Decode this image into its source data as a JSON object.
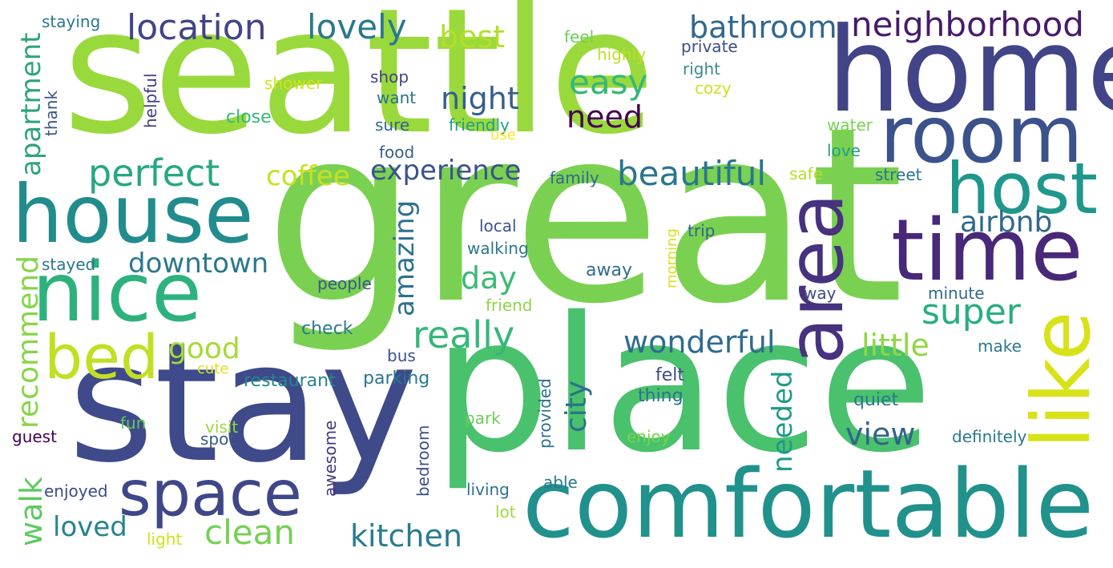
{
  "words": [
    {
      "id": "seattle",
      "text": "seattle",
      "color": "#9ad93c"
    },
    {
      "id": "great",
      "text": "great",
      "color": "#7ad151"
    },
    {
      "id": "place",
      "text": "place",
      "color": "#4ac16d"
    },
    {
      "id": "stay",
      "text": "stay",
      "color": "#3e4a89"
    },
    {
      "id": "home",
      "text": "home",
      "color": "#414487"
    },
    {
      "id": "comfortable",
      "text": "comfortable",
      "color": "#21918c"
    },
    {
      "id": "house",
      "text": "house",
      "color": "#228c8d"
    },
    {
      "id": "nice",
      "text": "nice",
      "color": "#2db27d"
    },
    {
      "id": "time",
      "text": "time",
      "color": "#482878"
    },
    {
      "id": "room",
      "text": "room",
      "color": "#3b528b"
    },
    {
      "id": "like",
      "text": "like",
      "color": "#d8e219"
    },
    {
      "id": "host",
      "text": "host",
      "color": "#1f988b"
    },
    {
      "id": "area",
      "text": "area",
      "color": "#46327e"
    },
    {
      "id": "space",
      "text": "space",
      "color": "#3f4788"
    },
    {
      "id": "bed",
      "text": "bed",
      "color": "#c2df23"
    },
    {
      "id": "location",
      "text": "location",
      "color": "#414487"
    },
    {
      "id": "lovely",
      "text": "lovely",
      "color": "#2a788e"
    },
    {
      "id": "neighborhood",
      "text": "neighborhood",
      "color": "#481a6c"
    },
    {
      "id": "bathroom",
      "text": "bathroom",
      "color": "#31688e"
    },
    {
      "id": "best",
      "text": "best",
      "color": "#b5de2b"
    },
    {
      "id": "easy",
      "text": "easy",
      "color": "#35b779"
    },
    {
      "id": "night",
      "text": "night",
      "color": "#355f8d"
    },
    {
      "id": "need",
      "text": "need",
      "color": "#440154"
    },
    {
      "id": "perfect",
      "text": "perfect",
      "color": "#26a784"
    },
    {
      "id": "coffee",
      "text": "coffee",
      "color": "#c9e020"
    },
    {
      "id": "experience",
      "text": "experience",
      "color": "#3b528b"
    },
    {
      "id": "beautiful",
      "text": "beautiful",
      "color": "#2a768e"
    },
    {
      "id": "airbnb",
      "text": "airbnb",
      "color": "#31688e"
    },
    {
      "id": "apartment",
      "text": "apartment",
      "color": "#2ea37f"
    },
    {
      "id": "downtown",
      "text": "downtown",
      "color": "#2a788e"
    },
    {
      "id": "super",
      "text": "super",
      "color": "#27ad81"
    },
    {
      "id": "really",
      "text": "really",
      "color": "#35b779"
    },
    {
      "id": "day",
      "text": "day",
      "color": "#3aba76"
    },
    {
      "id": "amazing",
      "text": "amazing",
      "color": "#2c728e"
    },
    {
      "id": "wonderful",
      "text": "wonderful",
      "color": "#2f6c8e"
    },
    {
      "id": "little",
      "text": "little",
      "color": "#90d743"
    },
    {
      "id": "good",
      "text": "good",
      "color": "#a5db36"
    },
    {
      "id": "recommend",
      "text": "recommend",
      "color": "#86d549"
    },
    {
      "id": "city",
      "text": "city",
      "color": "#2c728e"
    },
    {
      "id": "needed",
      "text": "needed",
      "color": "#1f988b"
    },
    {
      "id": "view",
      "text": "view",
      "color": "#33638d"
    },
    {
      "id": "walk",
      "text": "walk",
      "color": "#5ec962"
    },
    {
      "id": "loved",
      "text": "loved",
      "color": "#25848e"
    },
    {
      "id": "clean",
      "text": "clean",
      "color": "#75d054"
    },
    {
      "id": "kitchen",
      "text": "kitchen",
      "color": "#287c8e"
    },
    {
      "id": "staying",
      "text": "staying",
      "color": "#2a788e"
    },
    {
      "id": "feel",
      "text": "feel",
      "color": "#6ece58"
    },
    {
      "id": "highly",
      "text": "highly",
      "color": "#c0df25"
    },
    {
      "id": "private",
      "text": "private",
      "color": "#3e4c8a"
    },
    {
      "id": "right",
      "text": "right",
      "color": "#3b8a8c"
    },
    {
      "id": "cozy",
      "text": "cozy",
      "color": "#d0e11c"
    },
    {
      "id": "shower",
      "text": "shower",
      "color": "#d2e21b"
    },
    {
      "id": "shop",
      "text": "shop",
      "color": "#414487"
    },
    {
      "id": "want",
      "text": "want",
      "color": "#2c728e"
    },
    {
      "id": "helpful",
      "text": "helpful",
      "color": "#433e85"
    },
    {
      "id": "thank",
      "text": "thank",
      "color": "#3b528b"
    },
    {
      "id": "close",
      "text": "close",
      "color": "#35b779"
    },
    {
      "id": "sure",
      "text": "sure",
      "color": "#33638d"
    },
    {
      "id": "friendly",
      "text": "friendly",
      "color": "#1f9e89"
    },
    {
      "id": "use",
      "text": "use",
      "color": "#fde725"
    },
    {
      "id": "water",
      "text": "water",
      "color": "#7ad151"
    },
    {
      "id": "love",
      "text": "love",
      "color": "#1f9e89"
    },
    {
      "id": "food",
      "text": "food",
      "color": "#355f8d"
    },
    {
      "id": "family",
      "text": "family",
      "color": "#31688e"
    },
    {
      "id": "safe",
      "text": "safe",
      "color": "#b8de29"
    },
    {
      "id": "street",
      "text": "street",
      "color": "#2c728e"
    },
    {
      "id": "local",
      "text": "local",
      "color": "#3b528b"
    },
    {
      "id": "trip",
      "text": "trip",
      "color": "#33638d"
    },
    {
      "id": "walking",
      "text": "walking",
      "color": "#2a788e"
    },
    {
      "id": "morning",
      "text": "morning",
      "color": "#d5e21a"
    },
    {
      "id": "stayed",
      "text": "stayed",
      "color": "#2a788e"
    },
    {
      "id": "people",
      "text": "people",
      "color": "#38598c"
    },
    {
      "id": "away",
      "text": "away",
      "color": "#2f6c8e"
    },
    {
      "id": "way",
      "text": "way",
      "color": "#3e4a89"
    },
    {
      "id": "minute",
      "text": "minute",
      "color": "#31688e"
    },
    {
      "id": "friend",
      "text": "friend",
      "color": "#8bd646"
    },
    {
      "id": "check",
      "text": "check",
      "color": "#2a788e"
    },
    {
      "id": "make",
      "text": "make",
      "color": "#2a788e"
    },
    {
      "id": "bus",
      "text": "bus",
      "color": "#3b528b"
    },
    {
      "id": "cute",
      "text": "cute",
      "color": "#d8e219"
    },
    {
      "id": "restaurant",
      "text": "restaurant",
      "color": "#25848e"
    },
    {
      "id": "parking",
      "text": "parking",
      "color": "#2a788e"
    },
    {
      "id": "provided",
      "text": "provided",
      "color": "#2d718e"
    },
    {
      "id": "felt",
      "text": "felt",
      "color": "#3e4a89"
    },
    {
      "id": "thing",
      "text": "thing",
      "color": "#2c728e"
    },
    {
      "id": "quiet",
      "text": "quiet",
      "color": "#2a788e"
    },
    {
      "id": "park",
      "text": "park",
      "color": "#6ccd5a"
    },
    {
      "id": "fun",
      "text": "fun",
      "color": "#5ec962"
    },
    {
      "id": "visit",
      "text": "visit",
      "color": "#98d83e"
    },
    {
      "id": "guest",
      "text": "guest",
      "color": "#440154"
    },
    {
      "id": "spot",
      "text": "spot",
      "color": "#38598c"
    },
    {
      "id": "bedroom",
      "text": "bedroom",
      "color": "#3b528b"
    },
    {
      "id": "enjoy",
      "text": "enjoy",
      "color": "#7ad151"
    },
    {
      "id": "definitely",
      "text": "definitely",
      "color": "#2a788e"
    },
    {
      "id": "awesome",
      "text": "awesome",
      "color": "#453781"
    },
    {
      "id": "enjoyed",
      "text": "enjoyed",
      "color": "#3e4a89"
    },
    {
      "id": "living",
      "text": "living",
      "color": "#2c728e"
    },
    {
      "id": "able",
      "text": "able",
      "color": "#2a788e"
    },
    {
      "id": "lot",
      "text": "lot",
      "color": "#a2da37"
    },
    {
      "id": "light",
      "text": "light",
      "color": "#d0e11c"
    }
  ]
}
